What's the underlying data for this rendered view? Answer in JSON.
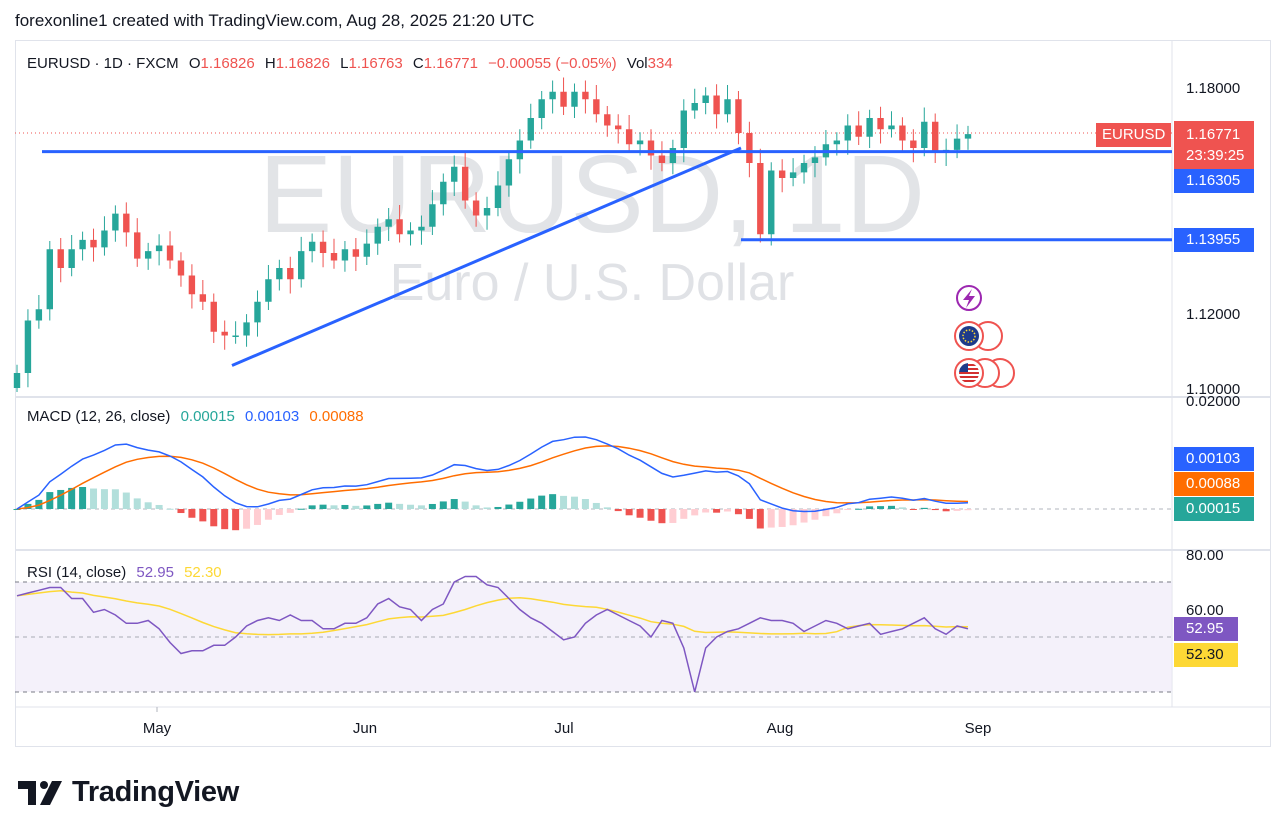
{
  "caption": "forexonline1 created with TradingView.com, Aug 28, 2025 21:20 UTC",
  "header": {
    "symbol": "EURUSD · 1D · FXCM",
    "o_label": "O",
    "o_value": "1.16826",
    "h_label": "H",
    "h_value": "1.16826",
    "l_label": "L",
    "l_value": "1.16763",
    "c_label": "C",
    "c_value": "1.16771",
    "change": "−0.00055 (−0.05%)",
    "vol_label": "Vol",
    "vol_value": "334"
  },
  "watermark": {
    "symbol": "EURUSD, 1D",
    "description": "Euro / U.S. Dollar"
  },
  "price_axis": {
    "ticks": [
      "1.18000",
      "1.12000",
      "1.10000"
    ]
  },
  "price_tags": {
    "symbol_tag": "EURUSD",
    "last_price": "1.16771",
    "countdown": "23:39:25",
    "line_1": "1.16305",
    "line_2": "1.13955"
  },
  "macd": {
    "title": "MACD (12, 26, close)",
    "hist_value": "0.00015",
    "macd_value": "0.00103",
    "signal_value": "0.00088",
    "axis_top": "0.02000",
    "tags": {
      "macd": "0.00103",
      "signal": "0.00088",
      "hist": "0.00015"
    }
  },
  "rsi": {
    "title": "RSI (14, close)",
    "rsi_value": "52.95",
    "ma_value": "52.30",
    "axis_ticks": [
      "80.00",
      "60.00"
    ],
    "tags": {
      "rsi": "52.95",
      "ma": "52.30"
    }
  },
  "time_axis": [
    "May",
    "Jun",
    "Jul",
    "Aug",
    "Sep"
  ],
  "footer": {
    "brand": "TradingView"
  },
  "colors": {
    "up": "#26a69a",
    "down": "#ef5350",
    "line": "#2962ff",
    "macd": "#2962ff",
    "signal": "#ff6d00",
    "rsi": "#7e57c2",
    "rsi_ma": "#fdd835"
  },
  "chart_data": {
    "type": "candlestick",
    "title": "EURUSD · 1D · FXCM",
    "price_range": [
      1.099,
      1.184
    ],
    "start_date": "2025-04-10",
    "end_date": "2025-08-28",
    "closes": [
      1.104,
      1.118,
      1.121,
      1.137,
      1.132,
      1.137,
      1.1395,
      1.1375,
      1.142,
      1.1465,
      1.1415,
      1.1345,
      1.1365,
      1.138,
      1.134,
      1.13,
      1.125,
      1.123,
      1.115,
      1.114,
      1.114,
      1.1175,
      1.123,
      1.129,
      1.132,
      1.129,
      1.1365,
      1.139,
      1.136,
      1.134,
      1.137,
      1.135,
      1.1385,
      1.143,
      1.145,
      1.141,
      1.142,
      1.143,
      1.149,
      1.155,
      1.159,
      1.15,
      1.146,
      1.148,
      1.154,
      1.161,
      1.166,
      1.172,
      1.177,
      1.179,
      1.175,
      1.179,
      1.177,
      1.173,
      1.17,
      1.169,
      1.165,
      1.166,
      1.162,
      1.16,
      1.164,
      1.174,
      1.176,
      1.178,
      1.173,
      1.177,
      1.168,
      1.16,
      1.141,
      1.158,
      1.156,
      1.1575,
      1.16,
      1.1615,
      1.165,
      1.166,
      1.17,
      1.167,
      1.172,
      1.169,
      1.17,
      1.166,
      1.164,
      1.171,
      1.163,
      1.1635,
      1.1665,
      1.1677
    ],
    "horizontal_levels": [
      1.16305,
      1.13955
    ],
    "trendline": {
      "from": [
        "2025-05-12",
        1.106
      ],
      "to": [
        "2025-07-28",
        1.164
      ]
    },
    "series": [
      {
        "name": "MACD",
        "last": 0.00103
      },
      {
        "name": "Signal",
        "last": 0.00088
      },
      {
        "name": "Histogram",
        "last": 0.00015
      },
      {
        "name": "RSI",
        "last": 52.95
      },
      {
        "name": "RSI MA",
        "last": 52.3
      }
    ],
    "rsi_values": [
      65,
      66,
      67,
      68,
      68,
      64,
      64,
      59,
      60,
      58,
      55,
      55,
      56,
      53,
      48,
      44,
      45,
      45,
      47,
      47,
      50,
      54,
      56,
      57,
      56,
      58,
      56,
      56,
      53,
      53,
      55,
      55,
      57,
      62,
      64,
      61,
      60,
      56,
      60,
      62,
      70,
      72,
      72,
      69,
      68,
      64,
      60,
      57,
      55,
      52,
      49,
      50,
      55,
      58,
      60,
      58,
      56,
      54,
      50,
      56,
      55,
      46,
      30,
      46,
      50,
      52,
      53,
      55,
      57,
      56,
      56,
      55,
      52,
      54,
      56,
      55,
      53,
      54,
      55,
      51,
      52,
      53,
      55,
      57,
      53,
      51,
      54,
      53
    ],
    "rsi_ylim": [
      40,
      85
    ],
    "rsi_levels": [
      70,
      50,
      30
    ]
  }
}
